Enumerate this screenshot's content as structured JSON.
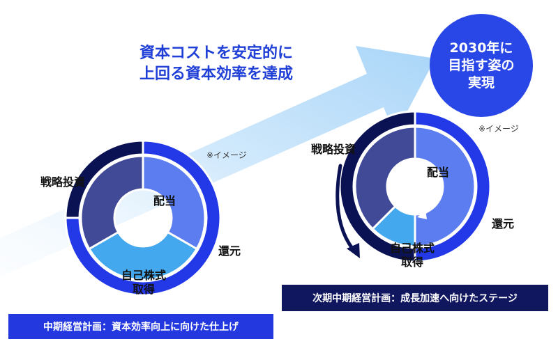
{
  "headline": {
    "line1": "資本コストを安定的に",
    "line2": "上回る資本効率を達成"
  },
  "goal": {
    "line1": "2030年に",
    "line2": "目指す姿の",
    "line3": "実現"
  },
  "note_left": "※イメージ",
  "note_right": "※イメージ",
  "left_donut": {
    "labels": {
      "investment": "戦略投資",
      "dividend": "配当",
      "return": "還元",
      "buyback_1": "自己株式",
      "buyback_2": "取得"
    }
  },
  "right_donut": {
    "labels": {
      "investment": "戦略投資",
      "dividend": "配当",
      "return": "還元",
      "buyback_1": "自己株式",
      "buyback_2": "取得"
    }
  },
  "plan_current": "中期経営計画：資本効率向上に向けた仕上げ",
  "plan_next": "次期中期経営計画：成長加速へ向けたステージ",
  "colors": {
    "investment_outer": "#0b1254",
    "investment_inner": "#414a96",
    "return_outer": "#2339e8",
    "dividend_inner": "#5b7df0",
    "buyback_inner": "#44a8ee",
    "arrow": "#bfe0fb",
    "headline": "#1f3fd6",
    "goal_circle": "#2946e6"
  }
}
